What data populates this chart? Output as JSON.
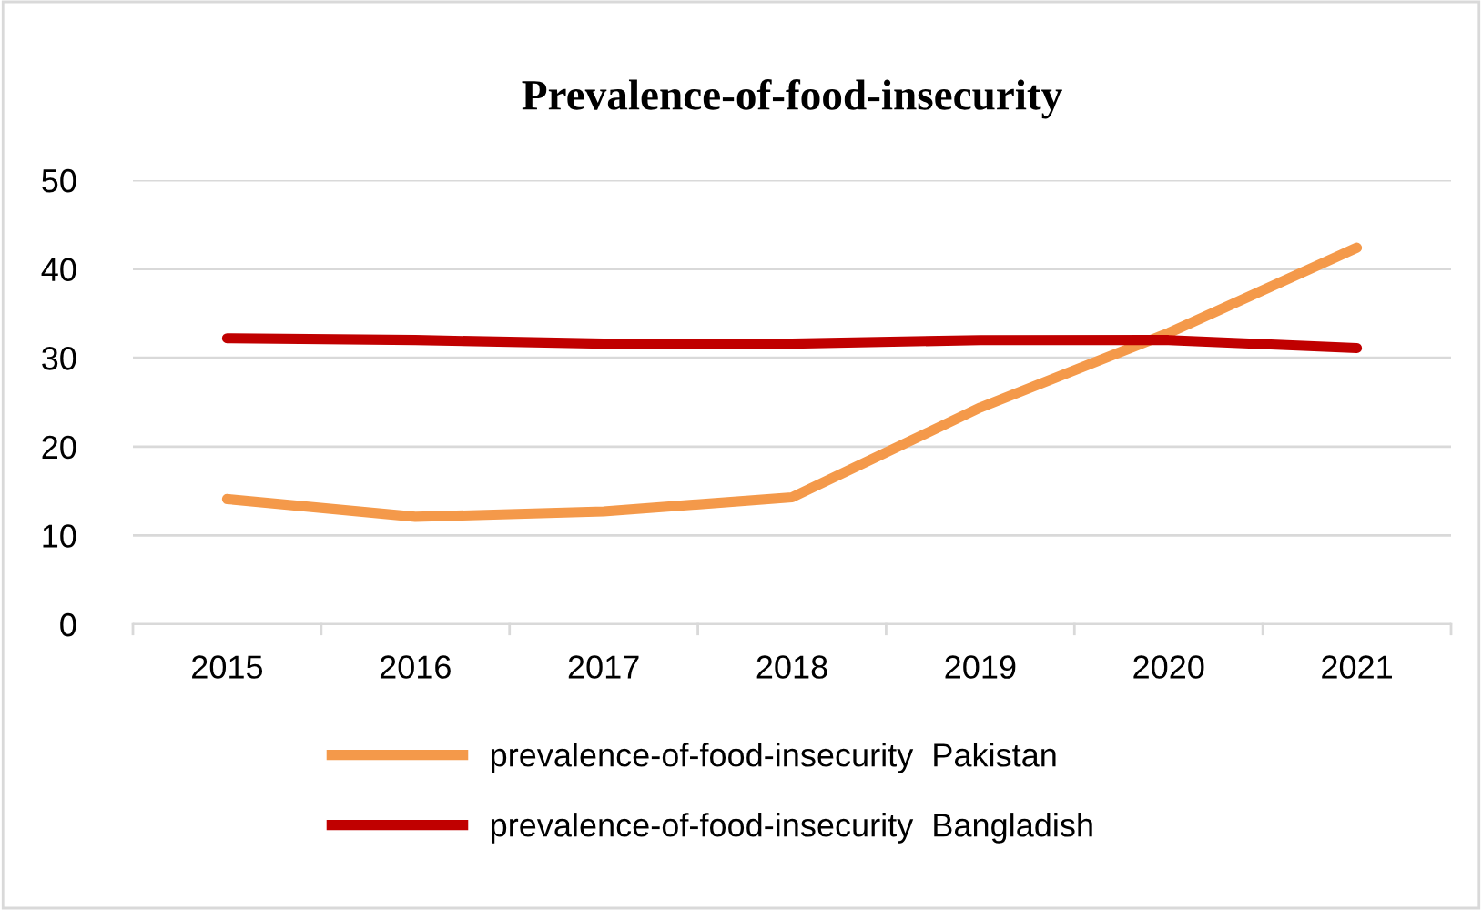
{
  "chart_data": {
    "type": "line",
    "title": "Prevalence-of-food-insecurity",
    "categories": [
      "2015",
      "2016",
      "2017",
      "2018",
      "2019",
      "2020",
      "2021"
    ],
    "series": [
      {
        "name": "prevalence-of-food-insecurity  Pakistan",
        "color": "#f4994a",
        "values": [
          14.1,
          12.1,
          12.7,
          14.3,
          24.4,
          32.8,
          42.4
        ]
      },
      {
        "name": "prevalence-of-food-insecurity  Bangladish",
        "color": "#c00000",
        "values": [
          32.2,
          32.0,
          31.6,
          31.6,
          32.0,
          32.0,
          31.1
        ]
      }
    ],
    "ylim": [
      0,
      50
    ],
    "yticks": [
      0,
      10,
      20,
      30,
      40,
      50
    ],
    "grid": "y",
    "legend": "bottom",
    "marker": "none",
    "line_style": "solid"
  }
}
